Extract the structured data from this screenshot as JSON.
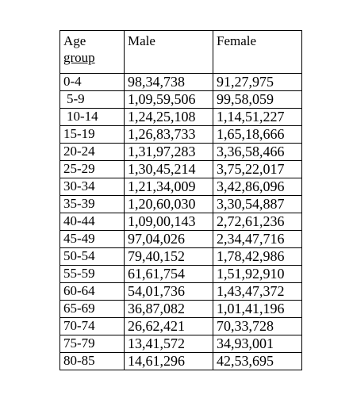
{
  "table": {
    "headers": {
      "age_line1": "Age",
      "age_line2": "group",
      "male": "Male",
      "female": "Female"
    },
    "rows": [
      {
        "age": "0-4",
        "male": "98,34,738",
        "female": "91,27,975"
      },
      {
        "age": "5-9",
        "male": "1,09,59,506",
        "female": "99,58,059"
      },
      {
        "age": "10-14",
        "male": "1,24,25,108",
        "female": "1,14,51,227"
      },
      {
        "age": "15-19",
        "male": "1,26,83,733",
        "female": "1,65,18,666"
      },
      {
        "age": "20-24",
        "male": "1,31,97,283",
        "female": "3,36,58,466"
      },
      {
        "age": "25-29",
        "male": "1,30,45,214",
        "female": "3,75,22,017"
      },
      {
        "age": "30-34",
        "male": "1,21,34,009",
        "female": "3,42,86,096"
      },
      {
        "age": "35-39",
        "male": "1,20,60,030",
        "female": "3,30,54,887"
      },
      {
        "age": "40-44",
        "male": "1,09,00,143",
        "female": "2,72,61,236"
      },
      {
        "age": "45-49",
        "male": "97,04,026",
        "female": "2,34,47,716"
      },
      {
        "age": "50-54",
        "male": "79,40,152",
        "female": "1,78,42,986"
      },
      {
        "age": "55-59",
        "male": "61,61,754",
        "female": "1,51,92,910"
      },
      {
        "age": "60-64",
        "male": "54,01,736",
        "female": "1,43,47,372"
      },
      {
        "age": "65-69",
        "male": "36,87,082",
        "female": "1,01,41,196"
      },
      {
        "age": "70-74",
        "male": "26,62,421",
        "female": "70,33,728"
      },
      {
        "age": "75-79",
        "male": "13,41,572",
        "female": "34,93,001"
      },
      {
        "age": "80-85",
        "male": "14,61,296",
        "female": "42,53,695"
      }
    ]
  }
}
